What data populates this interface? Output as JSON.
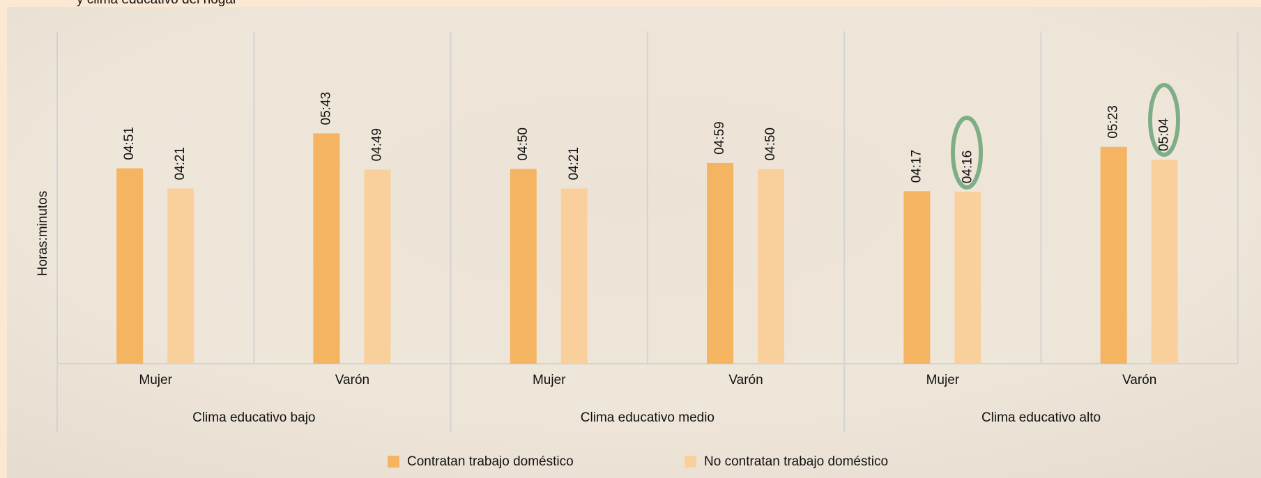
{
  "chart_data": {
    "type": "grouped_bar",
    "title": "y clima educativo del hogar",
    "y_label": "Horas:minutos",
    "groups": [
      "Clima educativo bajo",
      "Clima educativo medio",
      "Clima educativo alto"
    ],
    "categories": [
      "Mujer",
      "Varón",
      "Mujer",
      "Varón",
      "Mujer",
      "Varón"
    ],
    "series": [
      {
        "name": "Contratan trabajo doméstico",
        "color": "#f5b461",
        "values": [
          291,
          343,
          290,
          299,
          257,
          323
        ],
        "value_labels": [
          "04:51",
          "05:43",
          "04:50",
          "04:59",
          "04:17",
          "05:23"
        ]
      },
      {
        "name": "No contratan trabajo doméstico",
        "color": "#f9d09c",
        "values": [
          261,
          289,
          261,
          290,
          256,
          304
        ],
        "value_labels": [
          "04:21",
          "04:49",
          "04:21",
          "04:50",
          "04:16",
          "05:04"
        ]
      }
    ],
    "ylim": [
      0,
      495
    ]
  }
}
